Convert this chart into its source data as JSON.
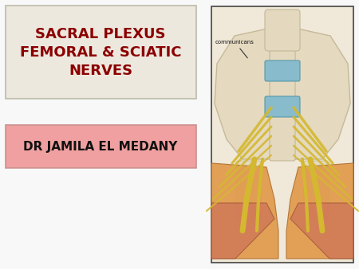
{
  "bg_color": "#f8f8f8",
  "title_lines": [
    "SACRAL PLEXUS",
    "FEMORAL & SCIATIC",
    "NERVES"
  ],
  "title_color": "#8B0000",
  "title_box_facecolor": "#EDE8DE",
  "title_box_edgecolor": "#BBBBAA",
  "subtitle": "DR JAMILA EL MEDANY",
  "subtitle_color": "#111111",
  "subtitle_box_facecolor": "#F0A0A0",
  "subtitle_box_edgecolor": "#CC9090",
  "title_fontsize": 13,
  "subtitle_fontsize": 11,
  "right_panel_bg": "#F0E8D8",
  "right_panel_edge": "#444444",
  "spine_bone_color": "#E4D8BE",
  "spine_bone_edge": "#C4B898",
  "disc_color": "#88BBCC",
  "disc_edge": "#5599AA",
  "nerve_color": "#D4B830",
  "muscle_orange": "#E09848",
  "muscle_salmon": "#D07858",
  "muscle_pink": "#D89088",
  "communicans_text": "communicans",
  "communicans_fontsize": 5
}
